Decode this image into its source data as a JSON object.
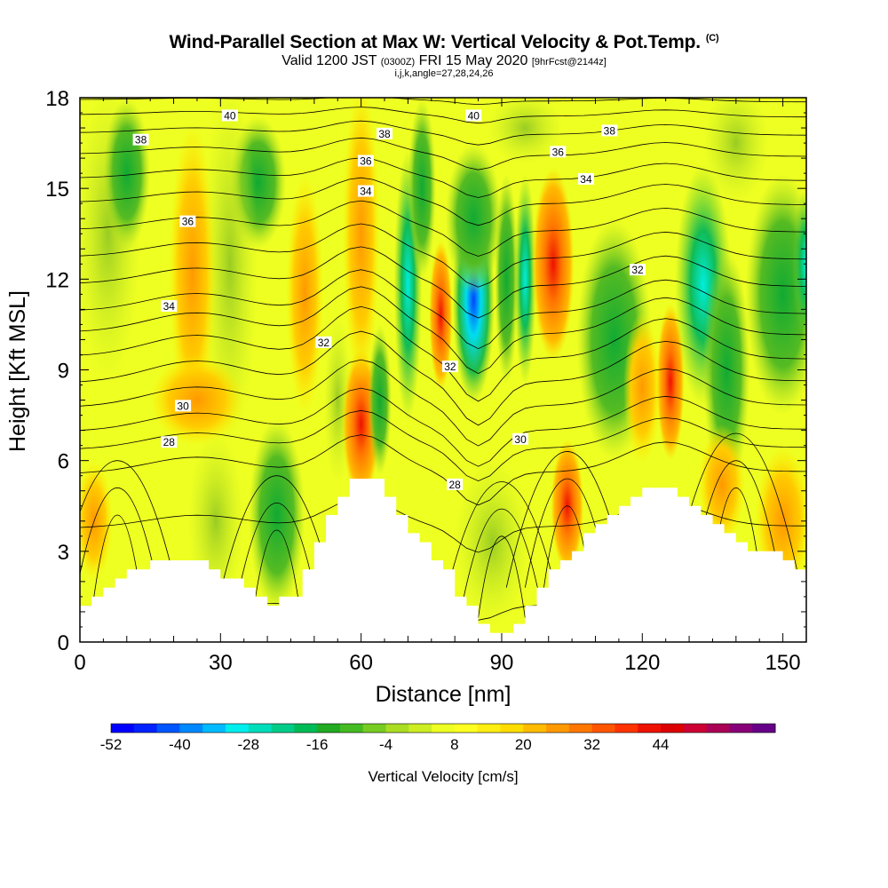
{
  "title": {
    "main": "Wind-Parallel Section at Max W: Vertical Velocity & Pot.Temp.",
    "copyright": "(C)",
    "valid_a": "Valid 1200 JST",
    "valid_z": "(0300Z)",
    "valid_b": "FRI 15 May 2020",
    "fcst": "[9hrFcst@2144z]",
    "indices": "i,j,k,angle=27,28,24,26"
  },
  "chart_data": {
    "type": "heatmap",
    "xlabel": "Distance [nm]",
    "ylabel": "Height [Kft MSL]",
    "xlim": [
      0,
      155
    ],
    "ylim": [
      0,
      18
    ],
    "x_ticks": [
      0,
      30,
      60,
      90,
      120,
      150
    ],
    "y_ticks": [
      0,
      3,
      6,
      9,
      12,
      15,
      18
    ],
    "grid": false,
    "colorbar": {
      "label": "Vertical Velocity [cm/s]",
      "tick_labels": [
        "-52",
        "-40",
        "-28",
        "-16",
        "-4",
        "8",
        "20",
        "32",
        "44"
      ],
      "range": [
        -52,
        52
      ],
      "colors": [
        "#0000ff",
        "#0022ff",
        "#0055ff",
        "#0088ff",
        "#00bbff",
        "#00eeee",
        "#00ddbb",
        "#00cc88",
        "#00bb55",
        "#22aa22",
        "#44bb22",
        "#77cc22",
        "#aadd22",
        "#ccee22",
        "#eeff22",
        "#ffff22",
        "#ffee11",
        "#ffdd00",
        "#ffbb00",
        "#ff9900",
        "#ff7700",
        "#ff5500",
        "#ff3300",
        "#ee1100",
        "#dd0000",
        "#cc0033",
        "#aa0055",
        "#880077",
        "#660088"
      ]
    },
    "terrain_kft": [
      [
        0,
        1.3
      ],
      [
        5,
        1.8
      ],
      [
        10,
        2.4
      ],
      [
        15,
        2.6
      ],
      [
        25,
        2.6
      ],
      [
        30,
        2.2
      ],
      [
        35,
        1.8
      ],
      [
        40,
        1.2
      ],
      [
        45,
        1.6
      ],
      [
        50,
        3.2
      ],
      [
        55,
        4.9
      ],
      [
        58,
        5.5
      ],
      [
        62,
        5.5
      ],
      [
        65,
        4.8
      ],
      [
        68,
        4.0
      ],
      [
        72,
        3.3
      ],
      [
        77,
        2.4
      ],
      [
        80,
        1.5
      ],
      [
        85,
        0.6
      ],
      [
        90,
        0.2
      ],
      [
        93,
        0.7
      ],
      [
        97,
        1.7
      ],
      [
        100,
        2.3
      ],
      [
        105,
        3.0
      ],
      [
        110,
        3.9
      ],
      [
        115,
        4.5
      ],
      [
        120,
        5.2
      ],
      [
        126,
        5.2
      ],
      [
        130,
        4.4
      ],
      [
        135,
        3.8
      ],
      [
        140,
        3.2
      ],
      [
        145,
        3.0
      ],
      [
        150,
        2.8
      ],
      [
        155,
        2.2
      ]
    ],
    "contour_labels": [
      {
        "text": "40",
        "x": 32,
        "y": 17.4
      },
      {
        "text": "40",
        "x": 84,
        "y": 17.4
      },
      {
        "text": "38",
        "x": 13,
        "y": 16.6
      },
      {
        "text": "38",
        "x": 65,
        "y": 16.8
      },
      {
        "text": "38",
        "x": 113,
        "y": 16.9
      },
      {
        "text": "36",
        "x": 61,
        "y": 15.9
      },
      {
        "text": "36",
        "x": 102,
        "y": 16.2
      },
      {
        "text": "36",
        "x": 23,
        "y": 13.9
      },
      {
        "text": "34",
        "x": 61,
        "y": 14.9
      },
      {
        "text": "34",
        "x": 108,
        "y": 15.3
      },
      {
        "text": "34",
        "x": 19,
        "y": 11.1
      },
      {
        "text": "32",
        "x": 52,
        "y": 9.9
      },
      {
        "text": "32",
        "x": 79,
        "y": 9.1
      },
      {
        "text": "32",
        "x": 119,
        "y": 12.3
      },
      {
        "text": "30",
        "x": 22,
        "y": 7.8
      },
      {
        "text": "30",
        "x": 94,
        "y": 6.7
      },
      {
        "text": "28",
        "x": 19,
        "y": 6.6
      },
      {
        "text": "28",
        "x": 80,
        "y": 5.2
      }
    ]
  }
}
